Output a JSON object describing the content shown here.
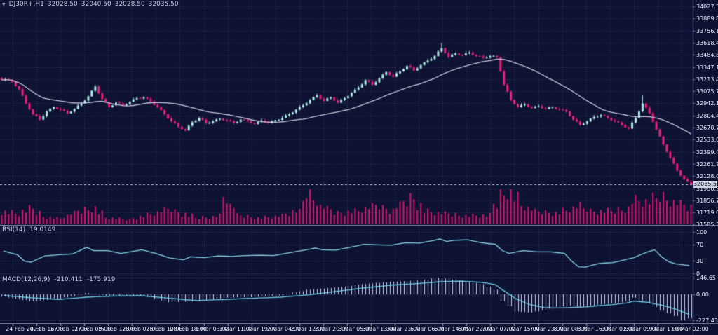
{
  "title": {
    "marker": "▼",
    "symbol_period": "DJ30R+,H1",
    "open": "32028.50",
    "high": "32040.50",
    "low": "32028.50",
    "close": "32035.50"
  },
  "indicator_rsi": {
    "label": "RSI(14)",
    "value": "19.0149"
  },
  "indicator_macd": {
    "label": "MACD(12,26,9)",
    "value_macd": "-210.411",
    "value_signal": "-175.919"
  },
  "price_axis": {
    "labels": [
      "34027.50",
      "33889.80",
      "33756.15",
      "33618.45",
      "33484.80",
      "33347.10",
      "33213.45",
      "33075.75",
      "32942.10",
      "32804.40",
      "32670.75",
      "32533.05",
      "32399.40",
      "32261.70",
      "32128.05",
      "31990.35",
      "31856.70",
      "31719.00",
      "31585.35"
    ],
    "current_price": "32035.50"
  },
  "rsi_axis": {
    "labels": [
      "100",
      "70",
      "30",
      "0"
    ]
  },
  "macd_axis": {
    "labels": [
      "146.65",
      "0.00",
      "-227.434"
    ]
  },
  "time_axis": {
    "labels": [
      "24 Feb 2023",
      "24 Feb 16:00",
      "27 Feb 01:00",
      "27 Feb 09:00",
      "27 Feb 17:00",
      "28 Feb 02:00",
      "28 Feb 10:00",
      "28 Feb 18:00",
      "1 Mar 03:00",
      "1 Mar 11:00",
      "1 Mar 19:00",
      "2 Mar 04:00",
      "2 Mar 12:00",
      "2 Mar 20:00",
      "3 Mar 05:00",
      "3 Mar 13:00",
      "3 Mar 21:00",
      "6 Mar 06:00",
      "6 Mar 14:00",
      "6 Mar 22:00",
      "7 Mar 07:00",
      "7 Mar 15:00",
      "7 Mar 23:00",
      "8 Mar 08:00",
      "8 Mar 16:00",
      "9 Mar 01:00",
      "9 Mar 09:00",
      "9 Mar 17:00",
      "10 Mar 02:00"
    ]
  },
  "colors": {
    "background": "#0e1233",
    "grid": "#2f3763",
    "level_line": "#3c4470",
    "bull": "#aeeae3",
    "bear": "#ec1f7b",
    "ma_line": "#c9c6da",
    "volume": "#d4156b",
    "rsi_line": "#86d3e9",
    "macd_hist": "#c6cdf0",
    "macd_signal": "#6ecbe4",
    "axis_text": "#e4e7f5",
    "separator": "#8f94b5",
    "tick": "#6a7095",
    "price_line": "#c9cbd9",
    "badge_bg": "#ccd0dd",
    "badge_text": "#0e1233"
  },
  "chart_data": {
    "type": "candlestick",
    "title": "DJ30R+,H1",
    "symbol": "DJ30R+",
    "timeframe": "H1",
    "ohlc_current": {
      "open": 32028.5,
      "high": 32040.5,
      "low": 32028.5,
      "close": 32035.5
    },
    "price_ylim": [
      31581,
      34098
    ],
    "y_axis_first_label": 34027.5,
    "y_axis_last_label": 31585.35,
    "close_anchors": [
      33210,
      33180,
      33100,
      32940,
      32820,
      32760,
      32850,
      32900,
      32870,
      32830,
      32880,
      32940,
      33020,
      33130,
      32990,
      32900,
      32950,
      32920,
      32960,
      33000,
      33010,
      32960,
      32900,
      32820,
      32740,
      32680,
      32640,
      32730,
      32780,
      32720,
      32740,
      32770,
      32750,
      32720,
      32760,
      32740,
      32710,
      32750,
      32720,
      32750,
      32780,
      32820,
      32870,
      32920,
      32980,
      33030,
      32970,
      33010,
      32950,
      33000,
      33060,
      33120,
      33200,
      33150,
      33220,
      33290,
      33240,
      33300,
      33360,
      33310,
      33370,
      33420,
      33470,
      33560,
      33460,
      33500,
      33480,
      33510,
      33470,
      33450,
      33470,
      33460,
      33150,
      32980,
      32900,
      32930,
      32890,
      32910,
      32880,
      32900,
      32870,
      32850,
      32760,
      32700,
      32740,
      32790,
      32810,
      32780,
      32740,
      32700,
      32660,
      32780,
      32940,
      32830,
      32650,
      32480,
      32330,
      32190,
      32090,
      32035.5
    ],
    "spikes": [
      {
        "anchor_index": 63,
        "high": 33618.45
      },
      {
        "anchor_index": 92,
        "high": 33030
      }
    ],
    "ma": {
      "kind": "sma",
      "window": 30
    },
    "volume": {
      "type": "bar",
      "anchors": [
        [
          0,
          300
        ],
        [
          2,
          250
        ],
        [
          4,
          350
        ],
        [
          6,
          180
        ],
        [
          8,
          140
        ],
        [
          11,
          300
        ],
        [
          13,
          380
        ],
        [
          15,
          150
        ],
        [
          18,
          110
        ],
        [
          21,
          220
        ],
        [
          24,
          340
        ],
        [
          26,
          240
        ],
        [
          28,
          150
        ],
        [
          31,
          200
        ],
        [
          32,
          640
        ],
        [
          34,
          200
        ],
        [
          37,
          150
        ],
        [
          40,
          190
        ],
        [
          42,
          280
        ],
        [
          44,
          700
        ],
        [
          46,
          400
        ],
        [
          48,
          260
        ],
        [
          51,
          300
        ],
        [
          54,
          420
        ],
        [
          56,
          320
        ],
        [
          59,
          620
        ],
        [
          61,
          300
        ],
        [
          64,
          240
        ],
        [
          67,
          200
        ],
        [
          70,
          200
        ],
        [
          72,
          700
        ],
        [
          73,
          800
        ],
        [
          75,
          420
        ],
        [
          77,
          280
        ],
        [
          80,
          260
        ],
        [
          83,
          400
        ],
        [
          85,
          300
        ],
        [
          88,
          300
        ],
        [
          90,
          380
        ],
        [
          91,
          560
        ],
        [
          93,
          520
        ],
        [
          95,
          640
        ],
        [
          97,
          520
        ],
        [
          99,
          400
        ]
      ]
    },
    "rsi": {
      "type": "line",
      "name": "RSI(14)",
      "current": 19.0149,
      "ylim": [
        0,
        100
      ],
      "levels": [
        100,
        70,
        30,
        0
      ],
      "anchors": [
        [
          0,
          54
        ],
        [
          2,
          45
        ],
        [
          3,
          30
        ],
        [
          4,
          27
        ],
        [
          5,
          35
        ],
        [
          6,
          42
        ],
        [
          8,
          45
        ],
        [
          10,
          47
        ],
        [
          12,
          63
        ],
        [
          13,
          55
        ],
        [
          15,
          55
        ],
        [
          17,
          48
        ],
        [
          20,
          57
        ],
        [
          22,
          48
        ],
        [
          24,
          37
        ],
        [
          26,
          33
        ],
        [
          27,
          40
        ],
        [
          29,
          38
        ],
        [
          31,
          42
        ],
        [
          33,
          41
        ],
        [
          35,
          43
        ],
        [
          37,
          44
        ],
        [
          39,
          43
        ],
        [
          41,
          49
        ],
        [
          43,
          55
        ],
        [
          45,
          61
        ],
        [
          46,
          57
        ],
        [
          48,
          56
        ],
        [
          50,
          63
        ],
        [
          52,
          70
        ],
        [
          54,
          69
        ],
        [
          56,
          68
        ],
        [
          58,
          74
        ],
        [
          60,
          73
        ],
        [
          62,
          79
        ],
        [
          63,
          83
        ],
        [
          64,
          77
        ],
        [
          65,
          80
        ],
        [
          67,
          81
        ],
        [
          69,
          74
        ],
        [
          71,
          70
        ],
        [
          72,
          55
        ],
        [
          73,
          48
        ],
        [
          75,
          55
        ],
        [
          77,
          52
        ],
        [
          79,
          52
        ],
        [
          81,
          48
        ],
        [
          82,
          30
        ],
        [
          83,
          16
        ],
        [
          84,
          15
        ],
        [
          86,
          24
        ],
        [
          88,
          26
        ],
        [
          89,
          30
        ],
        [
          91,
          38
        ],
        [
          93,
          52
        ],
        [
          94,
          57
        ],
        [
          95,
          40
        ],
        [
          96,
          28
        ],
        [
          97,
          23
        ],
        [
          99,
          19.0149
        ]
      ]
    },
    "macd": {
      "type": "line+bar",
      "name": "MACD(12,26,9)",
      "current_macd": -210.411,
      "current_signal": -175.919,
      "ylim": [
        -227.434,
        146.65
      ],
      "macd_anchors": [
        [
          0,
          -20
        ],
        [
          4,
          -60
        ],
        [
          8,
          -40
        ],
        [
          12,
          10
        ],
        [
          16,
          -20
        ],
        [
          20,
          -10
        ],
        [
          24,
          -70
        ],
        [
          28,
          -60
        ],
        [
          32,
          -30
        ],
        [
          36,
          -25
        ],
        [
          40,
          -10
        ],
        [
          44,
          40
        ],
        [
          48,
          60
        ],
        [
          52,
          90
        ],
        [
          56,
          110
        ],
        [
          60,
          120
        ],
        [
          63,
          146.65
        ],
        [
          66,
          120
        ],
        [
          69,
          90
        ],
        [
          71,
          40
        ],
        [
          72,
          -60
        ],
        [
          74,
          -150
        ],
        [
          76,
          -160
        ],
        [
          78,
          -140
        ],
        [
          80,
          -110
        ],
        [
          82,
          -100
        ],
        [
          84,
          -110
        ],
        [
          86,
          -90
        ],
        [
          88,
          -80
        ],
        [
          90,
          -60
        ],
        [
          91,
          -30
        ],
        [
          93,
          -80
        ],
        [
          95,
          -140
        ],
        [
          97,
          -190
        ],
        [
          98,
          -227.434
        ],
        [
          99,
          -210.411
        ]
      ],
      "signal_anchors": [
        [
          0,
          -10
        ],
        [
          4,
          -30
        ],
        [
          8,
          -45
        ],
        [
          12,
          -25
        ],
        [
          16,
          -15
        ],
        [
          20,
          -12
        ],
        [
          24,
          -35
        ],
        [
          28,
          -55
        ],
        [
          32,
          -45
        ],
        [
          36,
          -35
        ],
        [
          40,
          -25
        ],
        [
          44,
          -5
        ],
        [
          48,
          25
        ],
        [
          52,
          55
        ],
        [
          56,
          80
        ],
        [
          60,
          95
        ],
        [
          63,
          110
        ],
        [
          66,
          115
        ],
        [
          69,
          105
        ],
        [
          71,
          85
        ],
        [
          72,
          40
        ],
        [
          74,
          -40
        ],
        [
          76,
          -90
        ],
        [
          78,
          -115
        ],
        [
          80,
          -120
        ],
        [
          82,
          -115
        ],
        [
          84,
          -110
        ],
        [
          86,
          -100
        ],
        [
          88,
          -90
        ],
        [
          90,
          -75
        ],
        [
          91,
          -60
        ],
        [
          93,
          -70
        ],
        [
          95,
          -95
        ],
        [
          97,
          -130
        ],
        [
          99,
          -175.919
        ]
      ]
    }
  }
}
